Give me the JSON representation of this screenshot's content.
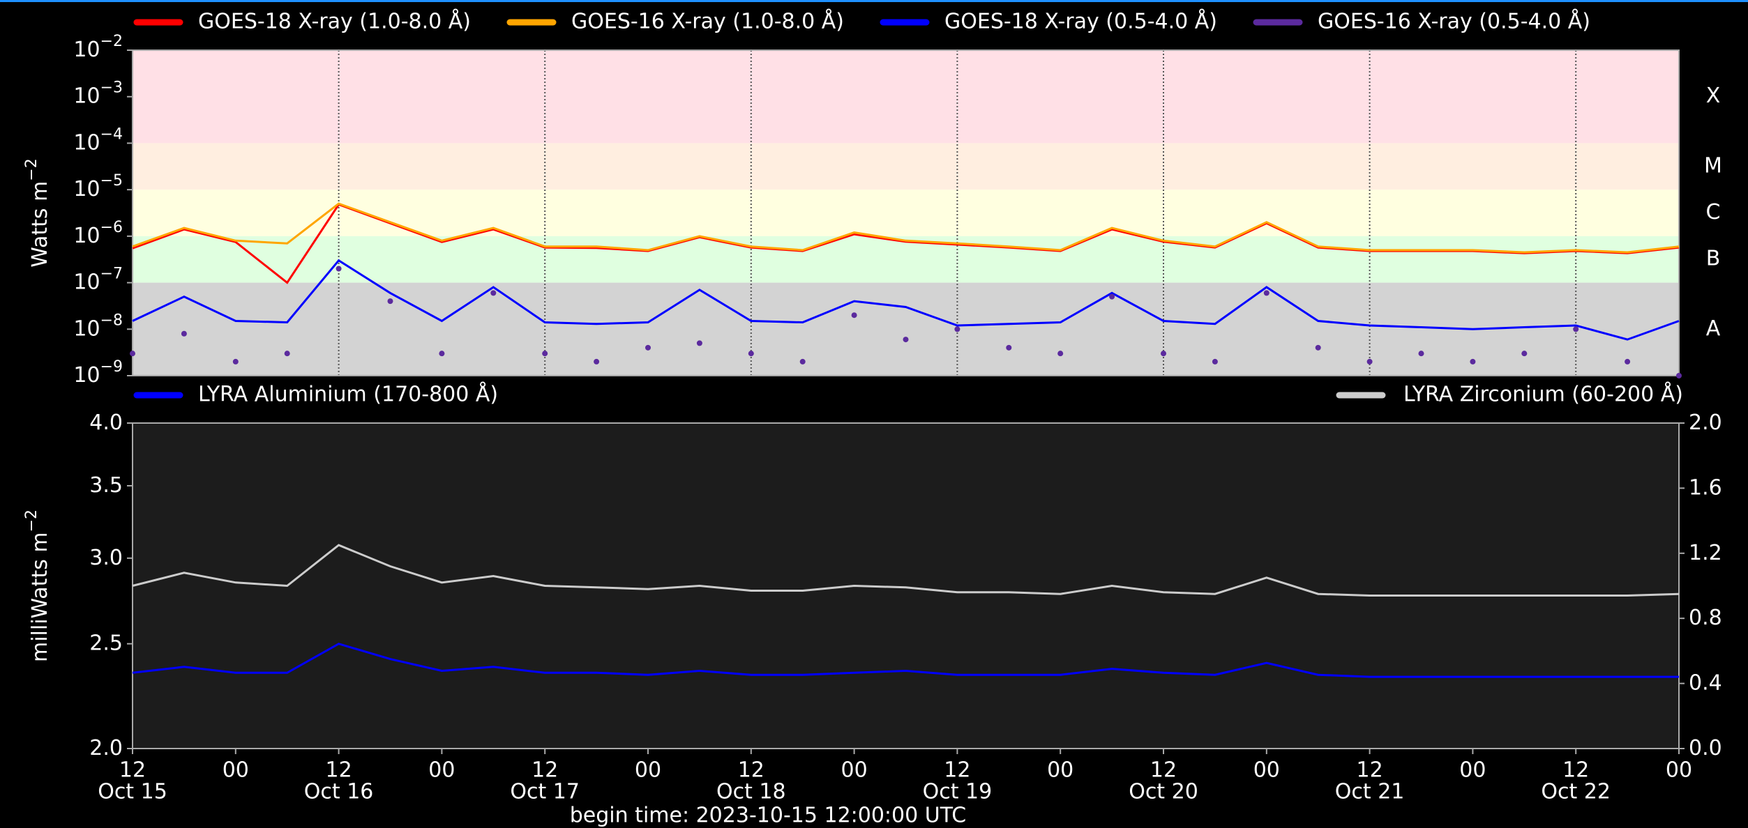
{
  "chart_data": [
    {
      "type": "line",
      "ylog": true,
      "ylabel": "Watts m",
      "ylabel_exponent": "−2",
      "xlim": [
        "2023-10-15T12:00",
        "2023-10-23T00:00"
      ],
      "xticks": [
        "2023-10-16T12:00",
        "2023-10-17T12:00",
        "2023-10-18T12:00",
        "2023-10-19T12:00",
        "2023-10-20T12:00",
        "2023-10-21T12:00",
        "2023-10-22T12:00"
      ],
      "ylim": [
        1e-09,
        0.01
      ],
      "yticks": [
        {
          "value": 1e-09,
          "label": "10",
          "exponent": "−9"
        },
        {
          "value": 1e-08,
          "label": "10",
          "exponent": "−8"
        },
        {
          "value": 1e-07,
          "label": "10",
          "exponent": "−7"
        },
        {
          "value": 1e-06,
          "label": "10",
          "exponent": "−6"
        },
        {
          "value": 1e-05,
          "label": "10",
          "exponent": "−5"
        },
        {
          "value": 0.0001,
          "label": "10",
          "exponent": "−4"
        },
        {
          "value": 0.001,
          "label": "10",
          "exponent": "−3"
        },
        {
          "value": 0.01,
          "label": "10",
          "exponent": "−2"
        }
      ],
      "bands": [
        {
          "label": "X",
          "range": [
            0.0001,
            0.01
          ],
          "color": "#ffe0e6"
        },
        {
          "label": "M",
          "range": [
            1e-05,
            0.0001
          ],
          "color": "#ffeee0"
        },
        {
          "label": "C",
          "range": [
            1e-06,
            1e-05
          ],
          "color": "#ffffe0"
        },
        {
          "label": "B",
          "range": [
            1e-07,
            1e-06
          ],
          "color": "#e0ffe0"
        },
        {
          "label": "A",
          "range": [
            1e-09,
            1e-07
          ],
          "color": "#d3d3d3"
        }
      ],
      "x": [
        "2023-10-15T12:00",
        "2023-10-15T18:00",
        "2023-10-16T00:00",
        "2023-10-16T06:00",
        "2023-10-16T12:00",
        "2023-10-16T18:00",
        "2023-10-17T00:00",
        "2023-10-17T06:00",
        "2023-10-17T12:00",
        "2023-10-17T18:00",
        "2023-10-18T00:00",
        "2023-10-18T06:00",
        "2023-10-18T12:00",
        "2023-10-18T18:00",
        "2023-10-19T00:00",
        "2023-10-19T06:00",
        "2023-10-19T12:00",
        "2023-10-19T18:00",
        "2023-10-20T00:00",
        "2023-10-20T06:00",
        "2023-10-20T12:00",
        "2023-10-20T18:00",
        "2023-10-21T00:00",
        "2023-10-21T06:00",
        "2023-10-21T12:00",
        "2023-10-21T18:00",
        "2023-10-22T00:00",
        "2023-10-22T06:00",
        "2023-10-22T12:00",
        "2023-10-22T18:00",
        "2023-10-23T00:00"
      ],
      "series": [
        {
          "name": "GOES-18 X-ray (1.0-8.0 Å)",
          "color": "#ff0000",
          "style": "line",
          "values": [
            5.5e-07,
            1.4e-06,
            7.5e-07,
            1e-07,
            4.8e-06,
            1.9e-06,
            7.5e-07,
            1.4e-06,
            5.7e-07,
            5.6e-07,
            4.8e-07,
            9.5e-07,
            5.7e-07,
            4.8e-07,
            1.1e-06,
            7.6e-07,
            6.6e-07,
            5.7e-07,
            4.8e-07,
            1.4e-06,
            7.6e-07,
            5.7e-07,
            1.9e-06,
            5.7e-07,
            4.8e-07,
            4.8e-07,
            4.8e-07,
            4.3e-07,
            4.8e-07,
            4.3e-07,
            5.7e-07
          ]
        },
        {
          "name": "GOES-16 X-ray (1.0-8.0 Å)",
          "color": "#ffa500",
          "style": "line",
          "values": [
            6e-07,
            1.5e-06,
            8e-07,
            7e-07,
            5e-06,
            2e-06,
            8e-07,
            1.5e-06,
            6e-07,
            6e-07,
            5e-07,
            1e-06,
            6e-07,
            5e-07,
            1.2e-06,
            8e-07,
            7e-07,
            6e-07,
            5e-07,
            1.5e-06,
            8e-07,
            6e-07,
            2e-06,
            6e-07,
            5e-07,
            5e-07,
            5e-07,
            4.5e-07,
            5e-07,
            4.5e-07,
            6e-07
          ]
        },
        {
          "name": "GOES-18 X-ray (0.5-4.0 Å)",
          "color": "#0000ff",
          "style": "line",
          "values": [
            1.5e-08,
            5e-08,
            1.5e-08,
            1.4e-08,
            3e-07,
            6e-08,
            1.5e-08,
            8e-08,
            1.4e-08,
            1.3e-08,
            1.4e-08,
            7e-08,
            1.5e-08,
            1.4e-08,
            4e-08,
            3e-08,
            1.2e-08,
            1.3e-08,
            1.4e-08,
            6e-08,
            1.5e-08,
            1.3e-08,
            8e-08,
            1.5e-08,
            1.2e-08,
            1.1e-08,
            1e-08,
            1.1e-08,
            1.2e-08,
            6e-09,
            1.5e-08
          ]
        },
        {
          "name": "GOES-16 X-ray (0.5-4.0 Å)",
          "color": "#5b2a9e",
          "style": "dots",
          "values": [
            3e-09,
            8e-09,
            2e-09,
            3e-09,
            2e-07,
            4e-08,
            3e-09,
            6e-08,
            3e-09,
            2e-09,
            4e-09,
            5e-09,
            3e-09,
            2e-09,
            2e-08,
            6e-09,
            1e-08,
            4e-09,
            3e-09,
            5e-08,
            3e-09,
            2e-09,
            6e-08,
            4e-09,
            2e-09,
            3e-09,
            2e-09,
            3e-09,
            1e-08,
            2e-09,
            1e-09
          ]
        }
      ]
    },
    {
      "type": "line",
      "ylog": true,
      "ylabel": "milliWatts m",
      "ylabel_exponent": "−2",
      "xlabel": "begin time: 2023-10-15 12:00:00 UTC",
      "xlim": [
        "2023-10-15T12:00",
        "2023-10-23T00:00"
      ],
      "xticks": [
        {
          "value": "2023-10-15T12:00",
          "label": "12",
          "sublabel": "Oct 15"
        },
        {
          "value": "2023-10-16T00:00",
          "label": "00"
        },
        {
          "value": "2023-10-16T12:00",
          "label": "12",
          "sublabel": "Oct 16"
        },
        {
          "value": "2023-10-17T00:00",
          "label": "00"
        },
        {
          "value": "2023-10-17T12:00",
          "label": "12",
          "sublabel": "Oct 17"
        },
        {
          "value": "2023-10-18T00:00",
          "label": "00"
        },
        {
          "value": "2023-10-18T12:00",
          "label": "12",
          "sublabel": "Oct 18"
        },
        {
          "value": "2023-10-19T00:00",
          "label": "00"
        },
        {
          "value": "2023-10-19T12:00",
          "label": "12",
          "sublabel": "Oct 19"
        },
        {
          "value": "2023-10-20T00:00",
          "label": "00"
        },
        {
          "value": "2023-10-20T12:00",
          "label": "12",
          "sublabel": "Oct 20"
        },
        {
          "value": "2023-10-21T00:00",
          "label": "00"
        },
        {
          "value": "2023-10-21T12:00",
          "label": "12",
          "sublabel": "Oct 21"
        },
        {
          "value": "2023-10-22T00:00",
          "label": "00"
        },
        {
          "value": "2023-10-22T12:00",
          "label": "12",
          "sublabel": "Oct 22"
        },
        {
          "value": "2023-10-23T00:00",
          "label": "00"
        }
      ],
      "ylim": [
        2.0,
        4.0
      ],
      "yticks": [
        {
          "value": 2.0,
          "label": "2.0"
        },
        {
          "value": 2.5,
          "label": "2.5"
        },
        {
          "value": 3.0,
          "label": "3.0"
        },
        {
          "value": 3.5,
          "label": "3.5"
        },
        {
          "value": 4.0,
          "label": "4.0"
        }
      ],
      "y2lim": [
        0,
        2.0
      ],
      "y2ticks": [
        {
          "value": 0,
          "label": "0.0"
        },
        {
          "value": 0.4,
          "label": "0.4"
        },
        {
          "value": 0.8,
          "label": "0.8"
        },
        {
          "value": 1.2,
          "label": "1.2"
        },
        {
          "value": 1.6,
          "label": "1.6"
        },
        {
          "value": 2.0,
          "label": "2.0"
        }
      ],
      "x": [
        "2023-10-15T12:00",
        "2023-10-15T18:00",
        "2023-10-16T00:00",
        "2023-10-16T06:00",
        "2023-10-16T12:00",
        "2023-10-16T18:00",
        "2023-10-17T00:00",
        "2023-10-17T06:00",
        "2023-10-17T12:00",
        "2023-10-17T18:00",
        "2023-10-18T00:00",
        "2023-10-18T06:00",
        "2023-10-18T12:00",
        "2023-10-18T18:00",
        "2023-10-19T00:00",
        "2023-10-19T06:00",
        "2023-10-19T12:00",
        "2023-10-19T18:00",
        "2023-10-20T00:00",
        "2023-10-20T06:00",
        "2023-10-20T12:00",
        "2023-10-20T18:00",
        "2023-10-21T00:00",
        "2023-10-21T06:00",
        "2023-10-21T12:00",
        "2023-10-21T18:00",
        "2023-10-22T00:00",
        "2023-10-22T06:00",
        "2023-10-22T12:00",
        "2023-10-22T18:00",
        "2023-10-23T00:00"
      ],
      "series": [
        {
          "name": "LYRA Aluminium (170-800 Å)",
          "color": "#0000ff",
          "style": "line",
          "values": [
            2.35,
            2.38,
            2.35,
            2.35,
            2.5,
            2.42,
            2.36,
            2.38,
            2.35,
            2.35,
            2.34,
            2.36,
            2.34,
            2.34,
            2.35,
            2.36,
            2.34,
            2.34,
            2.34,
            2.37,
            2.35,
            2.34,
            2.4,
            2.34,
            2.33,
            2.33,
            2.33,
            2.33,
            2.33,
            2.33,
            2.33
          ]
        },
        {
          "name": "LYRA Zirconium (60-200 Å)",
          "color": "#cccccc",
          "style": "line",
          "axis": "y2",
          "values": [
            1.0,
            1.08,
            1.02,
            1.0,
            1.25,
            1.12,
            1.02,
            1.06,
            1.0,
            0.99,
            0.98,
            1.0,
            0.97,
            0.97,
            1.0,
            0.99,
            0.96,
            0.96,
            0.95,
            1.0,
            0.96,
            0.95,
            1.05,
            0.95,
            0.94,
            0.94,
            0.94,
            0.94,
            0.94,
            0.94,
            0.95
          ]
        }
      ]
    }
  ]
}
